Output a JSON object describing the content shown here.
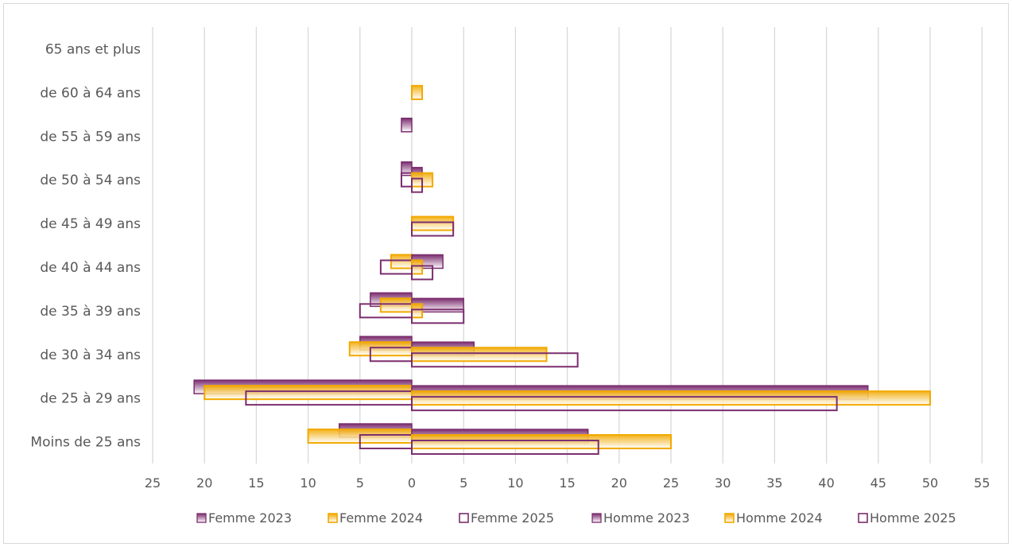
{
  "chart_data": {
    "type": "bar",
    "orientation": "horizontal",
    "categories": [
      "65 ans et plus",
      "de 60 à 64 ans",
      "de 55 à 59 ans",
      "de 50 à 54 ans",
      "de 45 à 49 ans",
      "de 40 à 44 ans",
      "de 35 à 39 ans",
      "de 30 à 34 ans",
      "de 25 à 29 ans",
      "Moins de 25 ans"
    ],
    "xlim": [
      -25,
      55
    ],
    "xticks": [
      -25,
      -20,
      -15,
      -10,
      -5,
      0,
      5,
      10,
      15,
      20,
      25,
      30,
      35,
      40,
      45,
      50,
      55
    ],
    "tick_labels": [
      "25",
      "20",
      "15",
      "10",
      "5",
      "0",
      "5",
      "10",
      "15",
      "20",
      "25",
      "30",
      "35",
      "40",
      "45",
      "50",
      "55"
    ],
    "grid": true,
    "legend_position": "bottom",
    "series": [
      {
        "name": "Femme 2023",
        "side": "left",
        "style": "filled-purple",
        "color": "#7B2D6E",
        "values": [
          0,
          0,
          1,
          1,
          0,
          0,
          4,
          5,
          21,
          7
        ]
      },
      {
        "name": "Femme 2024",
        "side": "left",
        "style": "outline-orange",
        "color": "#F2A900",
        "values": [
          0,
          0,
          0,
          0,
          0,
          2,
          3,
          6,
          20,
          10
        ]
      },
      {
        "name": "Femme 2025",
        "side": "left",
        "style": "outline-purple",
        "color": "#7B2D6E",
        "values": [
          0,
          0,
          0,
          1,
          0,
          3,
          5,
          4,
          16,
          5
        ]
      },
      {
        "name": "Homme 2023",
        "side": "right",
        "style": "filled-purple",
        "color": "#7B2D6E",
        "values": [
          0,
          0,
          0,
          1,
          0,
          3,
          5,
          6,
          44,
          17
        ]
      },
      {
        "name": "Homme 2024",
        "side": "right",
        "style": "outline-orange",
        "color": "#F2A900",
        "values": [
          0,
          1,
          0,
          2,
          4,
          1,
          1,
          13,
          50,
          25
        ]
      },
      {
        "name": "Homme 2025",
        "side": "right",
        "style": "outline-purple",
        "color": "#7B2D6E",
        "values": [
          0,
          0,
          0,
          1,
          4,
          2,
          5,
          16,
          41,
          18
        ]
      }
    ]
  }
}
